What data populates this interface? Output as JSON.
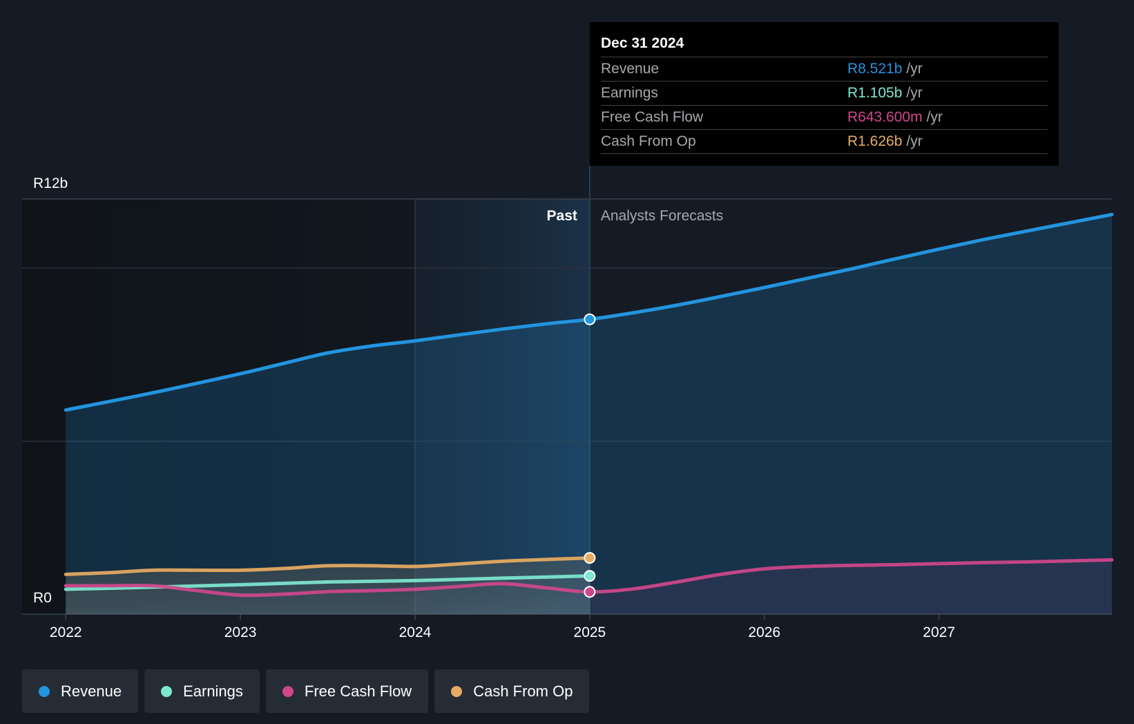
{
  "chart_data": {
    "type": "area",
    "y_axis": {
      "max_label": "R12b",
      "min_label": "R0",
      "ylim": [
        0,
        12
      ]
    },
    "x_ticks": [
      "2022",
      "2023",
      "2024",
      "2025",
      "2026",
      "2027"
    ],
    "xlim": [
      2021.75,
      2027.99
    ],
    "highlight_start": 2024.0,
    "past_end": 2025.0,
    "section_labels": {
      "past": "Past",
      "forecast": "Analysts Forecasts"
    },
    "series": [
      {
        "name": "Revenue",
        "color": "#2394df",
        "x": [
          2022.0,
          2022.5,
          2023.0,
          2023.25,
          2023.5,
          2023.75,
          2024.0,
          2024.25,
          2024.5,
          2024.75,
          2025.0,
          2025.25,
          2025.5,
          2025.75,
          2026.0,
          2026.25,
          2026.5,
          2026.75,
          2027.0,
          2027.25,
          2027.5,
          2027.99
        ],
        "values": [
          5.9,
          6.4,
          6.95,
          7.25,
          7.55,
          7.75,
          7.9,
          8.07,
          8.24,
          8.39,
          8.521,
          8.71,
          8.93,
          9.18,
          9.44,
          9.71,
          9.98,
          10.27,
          10.55,
          10.82,
          11.07,
          11.55
        ]
      },
      {
        "name": "Earnings",
        "color": "#7ee8d1",
        "x": [
          2022.0,
          2022.5,
          2023.0,
          2023.5,
          2024.0,
          2024.5,
          2025.0
        ],
        "values": [
          0.72,
          0.78,
          0.85,
          0.93,
          0.97,
          1.04,
          1.105
        ]
      },
      {
        "name": "Free Cash Flow",
        "color": "#d0468c",
        "x": [
          2022.0,
          2022.25,
          2022.5,
          2022.75,
          2023.0,
          2023.25,
          2023.5,
          2023.75,
          2024.0,
          2024.25,
          2024.5,
          2024.75,
          2025.0,
          2025.25,
          2025.5,
          2025.75,
          2026.0,
          2026.25,
          2026.5,
          2026.75,
          2027.0,
          2027.25,
          2027.5,
          2027.99
        ],
        "values": [
          0.82,
          0.82,
          0.82,
          0.68,
          0.55,
          0.58,
          0.65,
          0.68,
          0.72,
          0.8,
          0.88,
          0.76,
          0.6436,
          0.73,
          0.93,
          1.15,
          1.31,
          1.38,
          1.41,
          1.43,
          1.46,
          1.49,
          1.51,
          1.57
        ]
      },
      {
        "name": "Cash From Op",
        "color": "#e8ac62",
        "x": [
          2022.0,
          2022.25,
          2022.5,
          2022.75,
          2023.0,
          2023.25,
          2023.5,
          2023.75,
          2024.0,
          2024.25,
          2024.5,
          2024.75,
          2025.0
        ],
        "values": [
          1.15,
          1.2,
          1.27,
          1.27,
          1.27,
          1.32,
          1.4,
          1.4,
          1.38,
          1.45,
          1.53,
          1.58,
          1.626
        ]
      }
    ]
  },
  "tooltip": {
    "date": "Dec 31 2024",
    "unit": "/yr",
    "rows": [
      {
        "label": "Revenue",
        "value": "R8.521b",
        "color": "#2394df"
      },
      {
        "label": "Earnings",
        "value": "R1.105b",
        "color": "#7ee8d1"
      },
      {
        "label": "Free Cash Flow",
        "value": "R643.600m",
        "color": "#d0468c"
      },
      {
        "label": "Cash From Op",
        "value": "R1.626b",
        "color": "#e8ac62"
      }
    ]
  },
  "legend": [
    {
      "label": "Revenue",
      "color": "#2394df"
    },
    {
      "label": "Earnings",
      "color": "#7ee8d1"
    },
    {
      "label": "Free Cash Flow",
      "color": "#d0468c"
    },
    {
      "label": "Cash From Op",
      "color": "#e8ac62"
    }
  ]
}
